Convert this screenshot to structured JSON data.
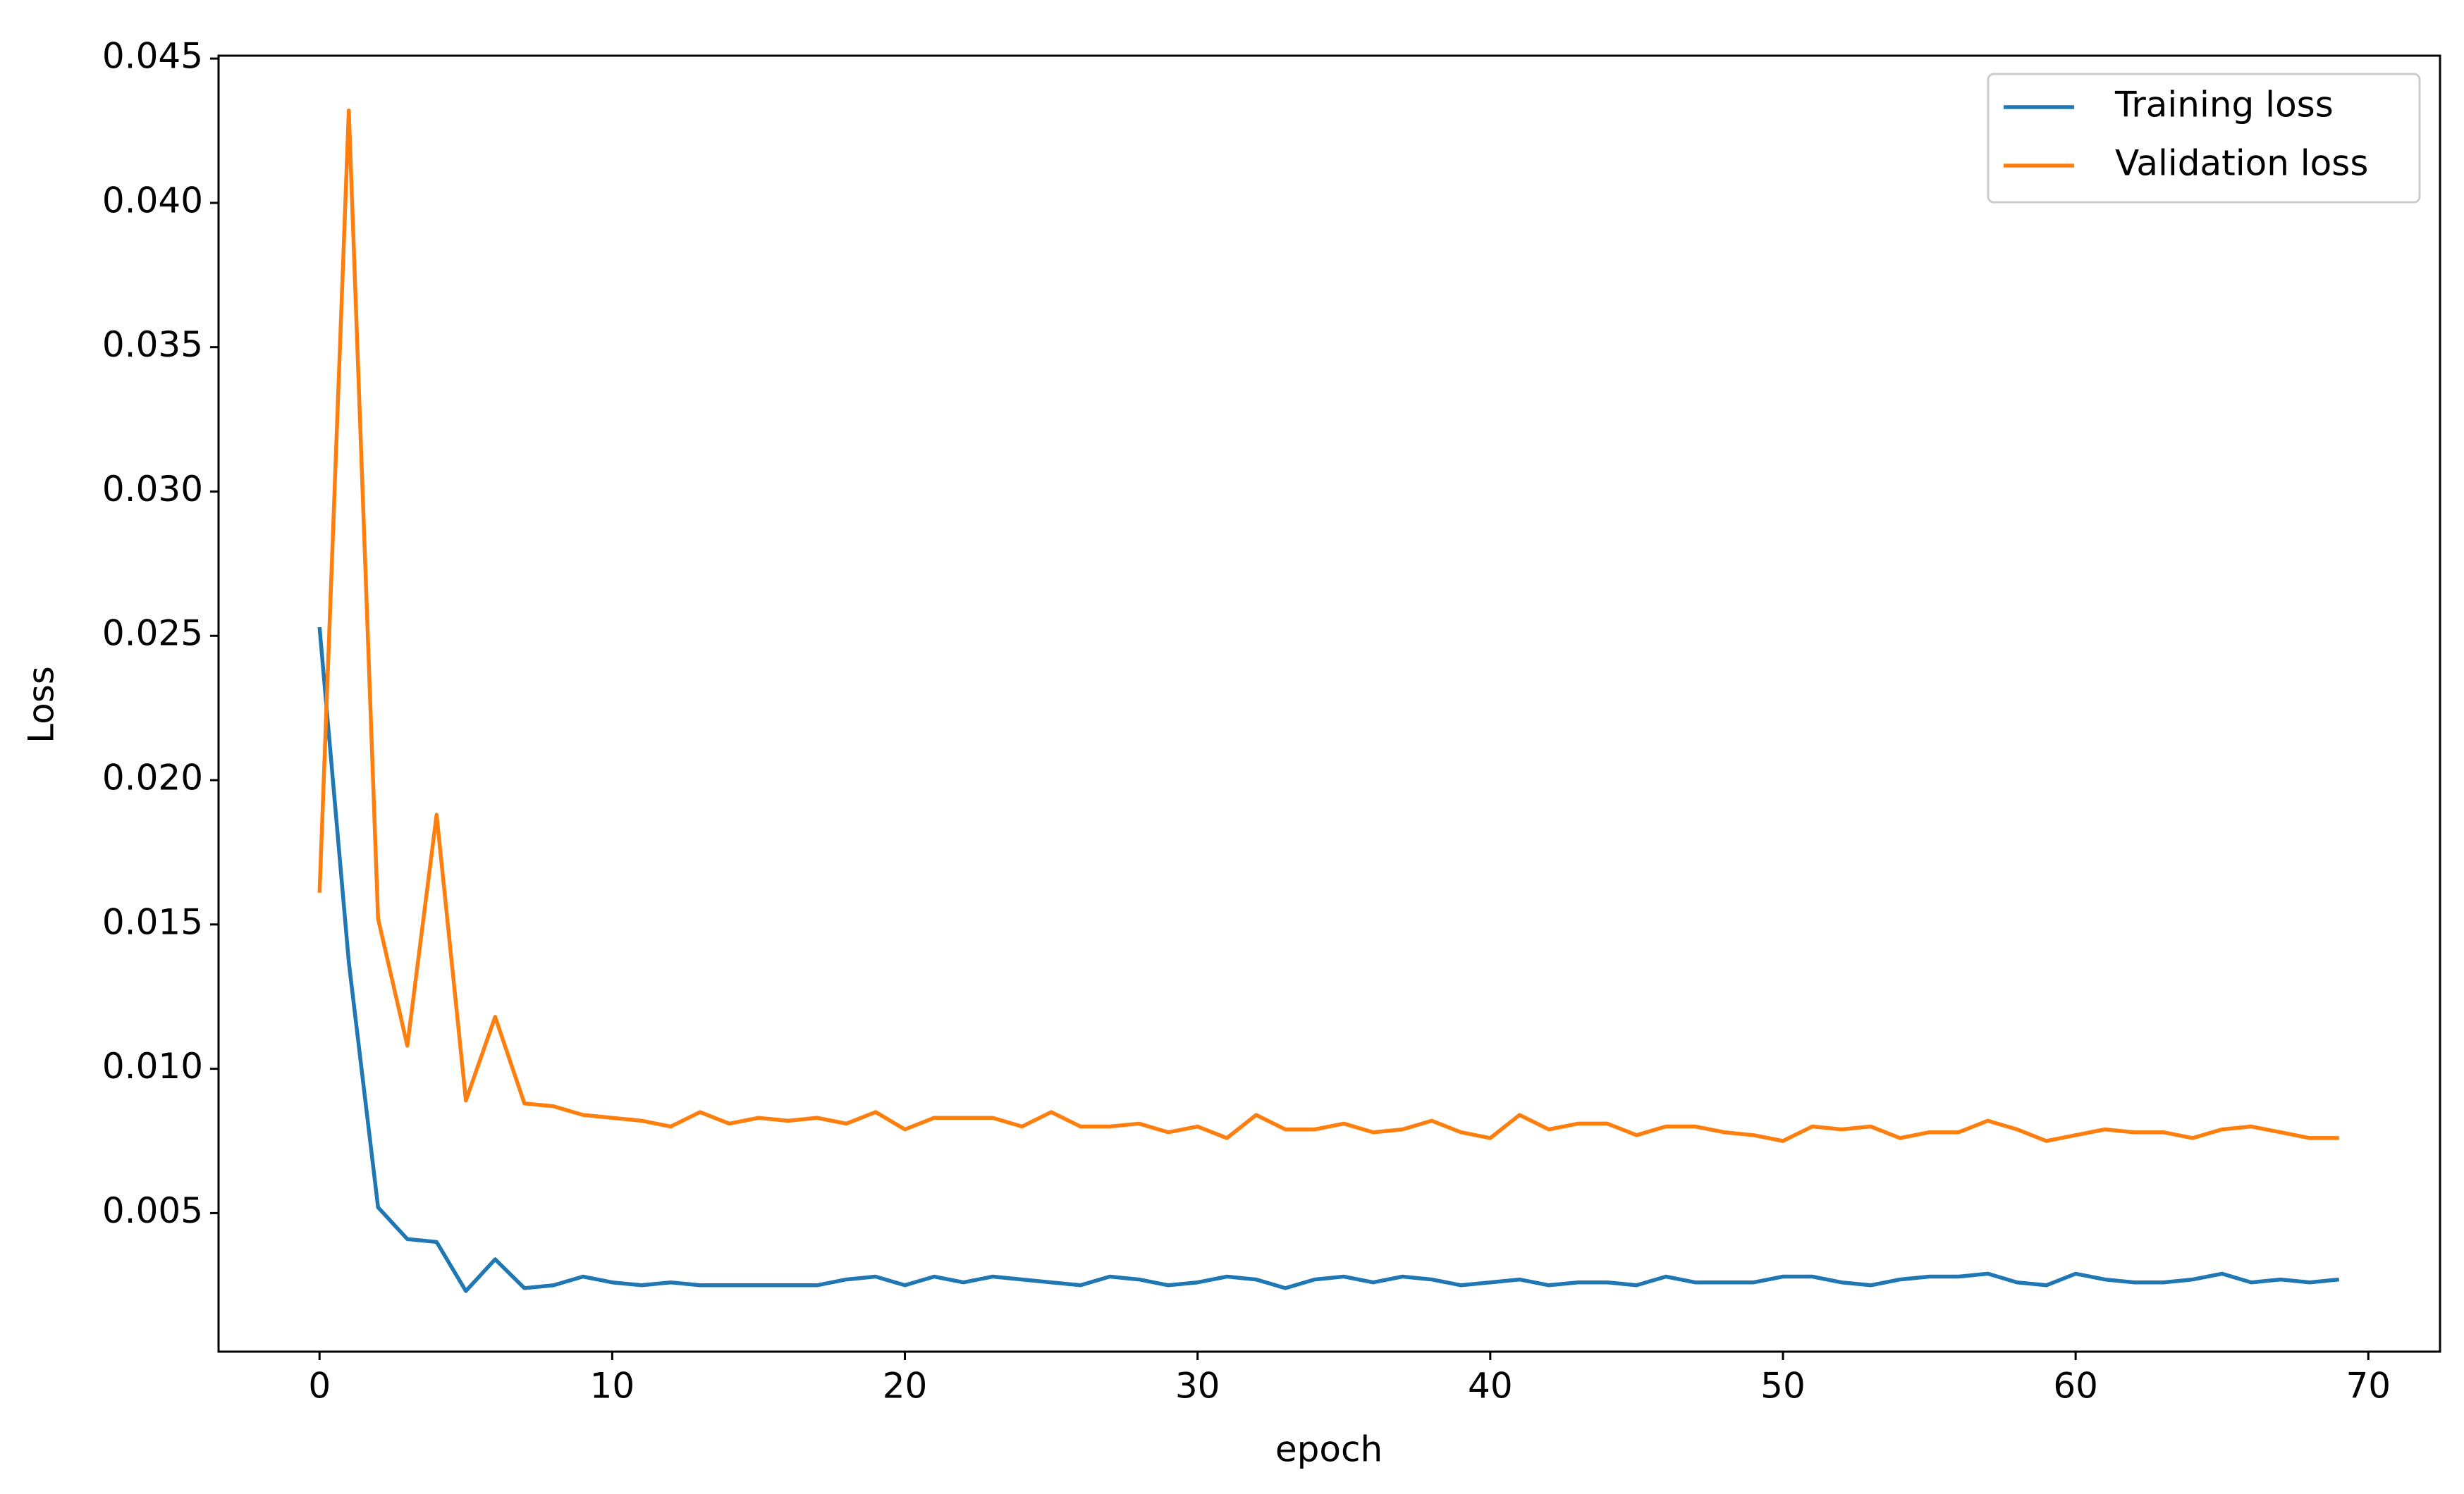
{
  "chart_data": {
    "type": "line",
    "xlabel": "epoch",
    "ylabel": "Loss",
    "x": [
      0,
      1,
      2,
      3,
      4,
      5,
      6,
      7,
      8,
      9,
      10,
      11,
      12,
      13,
      14,
      15,
      16,
      17,
      18,
      19,
      20,
      21,
      22,
      23,
      24,
      25,
      26,
      27,
      28,
      29,
      30,
      31,
      32,
      33,
      34,
      35,
      36,
      37,
      38,
      39,
      40,
      41,
      42,
      43,
      44,
      45,
      46,
      47,
      48,
      49,
      50,
      51,
      52,
      53,
      54,
      55,
      56,
      57,
      58,
      59,
      60,
      61,
      62,
      63,
      64,
      65,
      66,
      67,
      68,
      69
    ],
    "series": [
      {
        "name": "Training loss",
        "color": "#1f77b4",
        "values": [
          0.0253,
          0.0137,
          0.0052,
          0.0041,
          0.004,
          0.0023,
          0.0034,
          0.0024,
          0.0025,
          0.0028,
          0.0026,
          0.0025,
          0.0026,
          0.0025,
          0.0025,
          0.0025,
          0.0025,
          0.0025,
          0.0027,
          0.0028,
          0.0025,
          0.0028,
          0.0026,
          0.0028,
          0.0027,
          0.0026,
          0.0025,
          0.0028,
          0.0027,
          0.0025,
          0.0026,
          0.0028,
          0.0027,
          0.0024,
          0.0027,
          0.0028,
          0.0026,
          0.0028,
          0.0027,
          0.0025,
          0.0026,
          0.0027,
          0.0025,
          0.0026,
          0.0026,
          0.0025,
          0.0028,
          0.0026,
          0.0026,
          0.0026,
          0.0028,
          0.0028,
          0.0026,
          0.0025,
          0.0027,
          0.0028,
          0.0028,
          0.0029,
          0.0026,
          0.0025,
          0.0029,
          0.0027,
          0.0026,
          0.0026,
          0.0027,
          0.0029,
          0.0026,
          0.0027,
          0.0026,
          0.0027
        ]
      },
      {
        "name": "Validation loss",
        "color": "#ff7f0e",
        "values": [
          0.0161,
          0.0432,
          0.0152,
          0.0108,
          0.0188,
          0.0089,
          0.0118,
          0.0088,
          0.0087,
          0.0084,
          0.0083,
          0.0082,
          0.008,
          0.0085,
          0.0081,
          0.0083,
          0.0082,
          0.0083,
          0.0081,
          0.0085,
          0.0079,
          0.0083,
          0.0083,
          0.0083,
          0.008,
          0.0085,
          0.008,
          0.008,
          0.0081,
          0.0078,
          0.008,
          0.0076,
          0.0084,
          0.0079,
          0.0079,
          0.0081,
          0.0078,
          0.0079,
          0.0082,
          0.0078,
          0.0076,
          0.0084,
          0.0079,
          0.0081,
          0.0081,
          0.0077,
          0.008,
          0.008,
          0.0078,
          0.0077,
          0.0075,
          0.008,
          0.0079,
          0.008,
          0.0076,
          0.0078,
          0.0078,
          0.0082,
          0.0079,
          0.0075,
          0.0077,
          0.0079,
          0.0078,
          0.0078,
          0.0076,
          0.0079,
          0.008,
          0.0078,
          0.0076,
          0.0076
        ]
      }
    ],
    "xlim": [
      -3.45,
      72.45
    ],
    "xticks": [
      0,
      10,
      20,
      30,
      40,
      50,
      60,
      70
    ],
    "ylim": [
      0.0002,
      0.0451
    ],
    "yticks": [
      0.005,
      {
        "value": 0.01,
        "label": "0.010"
      },
      0.015,
      {
        "value": 0.02,
        "label": "0.020"
      },
      0.025,
      {
        "value": 0.03,
        "label": "0.030"
      },
      0.035,
      {
        "value": 0.04,
        "label": "0.040"
      },
      0.045
    ],
    "legend": "upper right"
  }
}
